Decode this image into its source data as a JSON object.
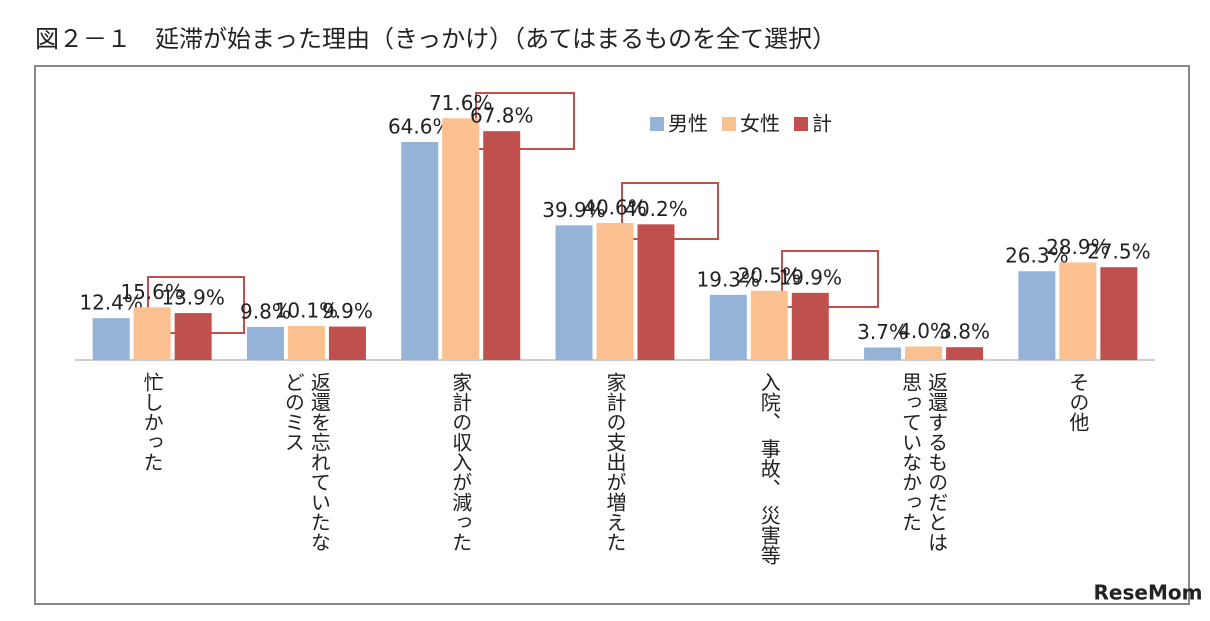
{
  "chart_data": {
    "type": "bar",
    "title": "図２－１　延滞が始まった理由（きっかけ）（あてはまるものを全て選択）",
    "categories": [
      "忙しかった",
      "返還を忘れていたな\nどのミス",
      "家計の収入が減った",
      "家計の支出が増えた",
      "入院、 事故、 災害等",
      "返還するものだとは\n思っていなかった",
      "その他"
    ],
    "series": [
      {
        "name": "男性",
        "color": "#95b3d7",
        "values": [
          12.4,
          9.8,
          64.6,
          39.9,
          19.3,
          3.7,
          26.3
        ],
        "value_labels": [
          "12.4%",
          "9.8%",
          "64.6%",
          "39.9%",
          "19.3%",
          "3.7%",
          "26.3%"
        ]
      },
      {
        "name": "女性",
        "color": "#fac090",
        "values": [
          15.6,
          10.1,
          71.6,
          40.6,
          20.5,
          4.0,
          28.9
        ],
        "value_labels": [
          "15.6%",
          "10.1%",
          "71.6%",
          "40.6%",
          "20.5%",
          "4.0%",
          "28.9%"
        ]
      },
      {
        "name": "計",
        "color": "#c0504d",
        "values": [
          13.9,
          9.9,
          67.8,
          40.2,
          19.9,
          3.8,
          27.5
        ],
        "value_labels": [
          "13.9%",
          "9.9%",
          "67.8%",
          "40.2%",
          "19.9%",
          "3.8%",
          "27.5%"
        ]
      }
    ],
    "ylim": [
      0,
      80
    ],
    "legend": "top-right",
    "watermark": "ReseMom"
  }
}
